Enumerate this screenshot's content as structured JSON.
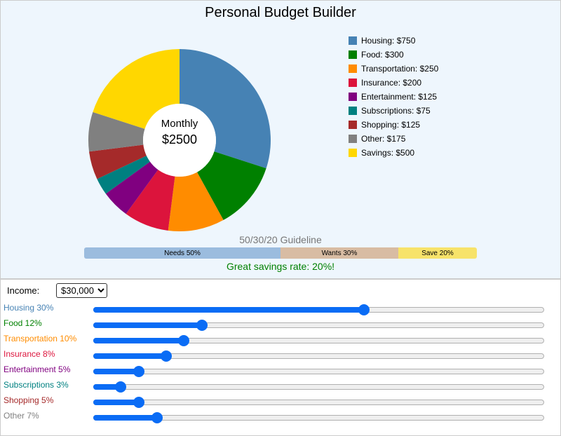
{
  "title": "Personal Budget Builder",
  "center": {
    "label": "Monthly",
    "total": "$2500"
  },
  "chart_data": {
    "type": "pie",
    "donut": true,
    "categories": [
      "Housing",
      "Food",
      "Transportation",
      "Insurance",
      "Entertainment",
      "Subscriptions",
      "Shopping",
      "Other",
      "Savings"
    ],
    "values": [
      750,
      300,
      250,
      200,
      125,
      75,
      125,
      175,
      500
    ],
    "colors": [
      "#4682b4",
      "#008000",
      "#ff8c00",
      "#dc143c",
      "#800080",
      "#008080",
      "#a52a2a",
      "#808080",
      "#ffd700"
    ]
  },
  "legend": [
    "Housing: $750",
    "Food: $300",
    "Transportation: $250",
    "Insurance: $200",
    "Entertainment: $125",
    "Subscriptions: $75",
    "Shopping: $125",
    "Other: $175",
    "Savings: $500"
  ],
  "guideline": {
    "title": "50/30/20 Guideline",
    "segments": [
      {
        "label": "Needs 50%",
        "pct": 50,
        "color": "#9bbcde"
      },
      {
        "label": "Wants 30%",
        "pct": 30,
        "color": "#d8bca3"
      },
      {
        "label": "Save 20%",
        "pct": 20,
        "color": "#f7e36a"
      }
    ],
    "message": "Great savings rate: 20%!"
  },
  "income": {
    "label": "Income:",
    "value": "$30,000"
  },
  "sliders": {
    "max": 50,
    "items": [
      {
        "label": "Housing 30%",
        "value": 30,
        "color": "#4682b4"
      },
      {
        "label": "Food 12%",
        "value": 12,
        "color": "#008000"
      },
      {
        "label": "Transportation 10%",
        "value": 10,
        "color": "#ff8c00"
      },
      {
        "label": "Insurance 8%",
        "value": 8,
        "color": "#dc143c"
      },
      {
        "label": "Entertainment 5%",
        "value": 5,
        "color": "#800080"
      },
      {
        "label": "Subscriptions 3%",
        "value": 3,
        "color": "#008080"
      },
      {
        "label": "Shopping 5%",
        "value": 5,
        "color": "#a52a2a"
      },
      {
        "label": "Other 7%",
        "value": 7,
        "color": "#808080"
      }
    ]
  }
}
